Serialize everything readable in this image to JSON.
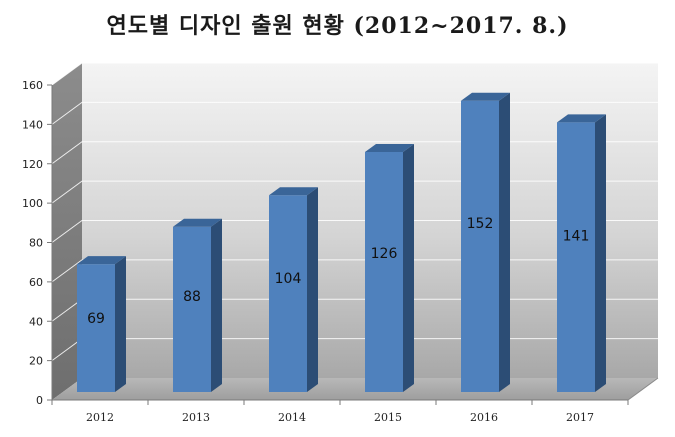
{
  "chart_data": {
    "type": "bar",
    "title": "연도별 디자인 출원 현황 (2012~2017. 8.)",
    "categories": [
      "2012",
      "2013",
      "2014",
      "2015",
      "2016",
      "2017"
    ],
    "values": [
      69,
      88,
      104,
      126,
      152,
      141
    ],
    "data_labels": [
      "69",
      "88",
      "104",
      "126",
      "152",
      "141"
    ],
    "ylim": [
      0,
      160
    ],
    "yticks": [
      "0",
      "20",
      "40",
      "60",
      "80",
      "100",
      "120",
      "140",
      "160"
    ],
    "xlabel": "",
    "ylabel": "",
    "grid": true,
    "legend": "none",
    "style": "3d-column",
    "colors": {
      "bar_front": "#4f81bd",
      "bar_side": "#2c4d75",
      "bar_top": "#3a6598",
      "wall_light": "#f2f2f2",
      "wall_dark": "#9a9a9a",
      "gridline": "#ffffff"
    }
  }
}
